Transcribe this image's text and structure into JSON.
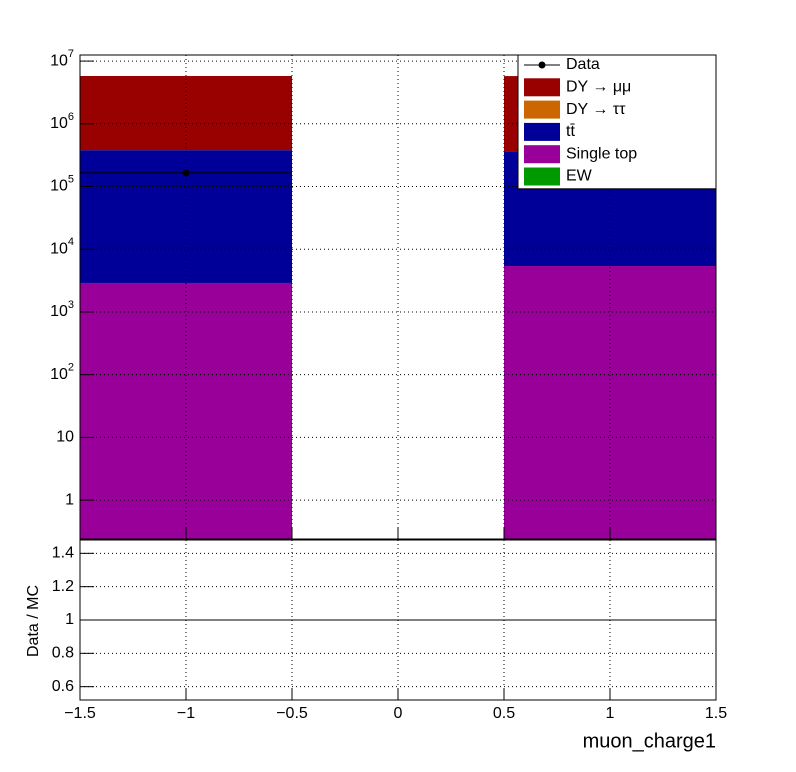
{
  "chart_data": [
    {
      "type": "stacked_histogram",
      "log_y": true,
      "grid": true,
      "bins": [
        -1.5,
        -0.5,
        0.5,
        1.5
      ],
      "ylim": [
        0.24,
        12500000
      ],
      "yticks": [
        1,
        10,
        {
          "value": 100,
          "label": "10^2"
        },
        {
          "value": 1000,
          "label": "10^3"
        },
        {
          "value": 10000,
          "label": "10^4"
        },
        {
          "value": 100000,
          "label": "10^5"
        },
        {
          "value": 1000000,
          "label": "10^6"
        },
        {
          "value": 10000000,
          "label": "10^7"
        }
      ],
      "data": {
        "name": "Data",
        "color": "#000000",
        "values": [
          165000,
          null,
          null
        ]
      },
      "series": [
        {
          "name": "DY → μμ",
          "color": "#990000",
          "values": [
            5400000,
            0,
            5400000
          ]
        },
        {
          "name": "DY → ττ",
          "color": "#cc6600",
          "values": [
            0,
            0,
            0
          ]
        },
        {
          "name": "tt̄",
          "color": "#000099",
          "values": [
            377000,
            0,
            360000
          ]
        },
        {
          "name": "Single top",
          "color": "#990099",
          "values": [
            2900,
            0,
            5400
          ]
        },
        {
          "name": "EW",
          "color": "#009900",
          "values": [
            0,
            0,
            0
          ]
        }
      ],
      "legend": "top-right"
    },
    {
      "type": "ratio",
      "grid": true,
      "xlim": [
        -1.5,
        1.5
      ],
      "xticks": [
        {
          "value": -1.5,
          "label": "−1.5"
        },
        {
          "value": -1,
          "label": "−1"
        },
        {
          "value": -0.5,
          "label": "−0.5"
        },
        0,
        0.5,
        1,
        1.5
      ],
      "ylim": [
        0.52,
        1.48
      ],
      "yticks": [
        0.6,
        0.8,
        1,
        1.2,
        1.4
      ],
      "reference_line": 1,
      "xlabel": "muon_charge1",
      "ylabel": "Data / MC"
    }
  ]
}
